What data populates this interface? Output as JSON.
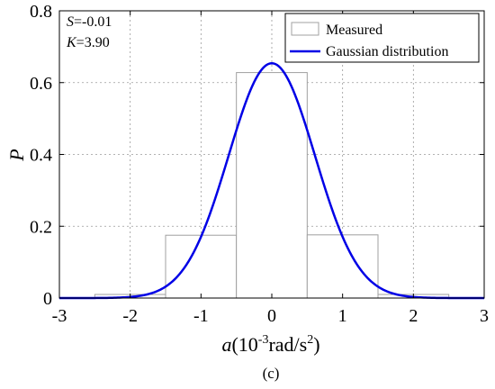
{
  "chart_data": {
    "type": "bar",
    "ylabel": "P",
    "xlabel": {
      "var": "a",
      "open": "(10",
      "exp": "-3",
      "unit": "rad/s",
      "unit_exp": "2",
      "close": ")"
    },
    "caption": "(c)",
    "xlim": [
      -3,
      3
    ],
    "ylim": [
      0,
      0.8
    ],
    "x_ticks": [
      -3,
      -2,
      -1,
      0,
      1,
      2,
      3
    ],
    "x_tick_labels": [
      "-3",
      "-2",
      "-1",
      "0",
      "1",
      "2",
      "3"
    ],
    "y_ticks": [
      0,
      0.2,
      0.4,
      0.6,
      0.8
    ],
    "y_tick_labels": [
      "0",
      "0.2",
      "0.4",
      "0.6",
      "0.8"
    ],
    "grid": true,
    "legend_position": "top-right",
    "stats": [
      {
        "symbol": "S",
        "text": "=-0.01"
      },
      {
        "symbol": "K",
        "text": "=3.90"
      }
    ],
    "series": [
      {
        "name": "Measured",
        "kind": "histogram",
        "color": "#a0a0a0",
        "bins": [
          {
            "x0": -2.5,
            "x1": -1.5,
            "value": 0.01
          },
          {
            "x0": -1.5,
            "x1": -0.5,
            "value": 0.175
          },
          {
            "x0": -0.5,
            "x1": 0.5,
            "value": 0.628
          },
          {
            "x0": 0.5,
            "x1": 1.5,
            "value": 0.176
          },
          {
            "x0": 1.5,
            "x1": 2.5,
            "value": 0.01
          }
        ]
      },
      {
        "name": "Gaussian distribution",
        "kind": "curve",
        "color": "#0000e6",
        "mean": 0,
        "sigma": 0.61,
        "peak": 0.654
      }
    ]
  }
}
